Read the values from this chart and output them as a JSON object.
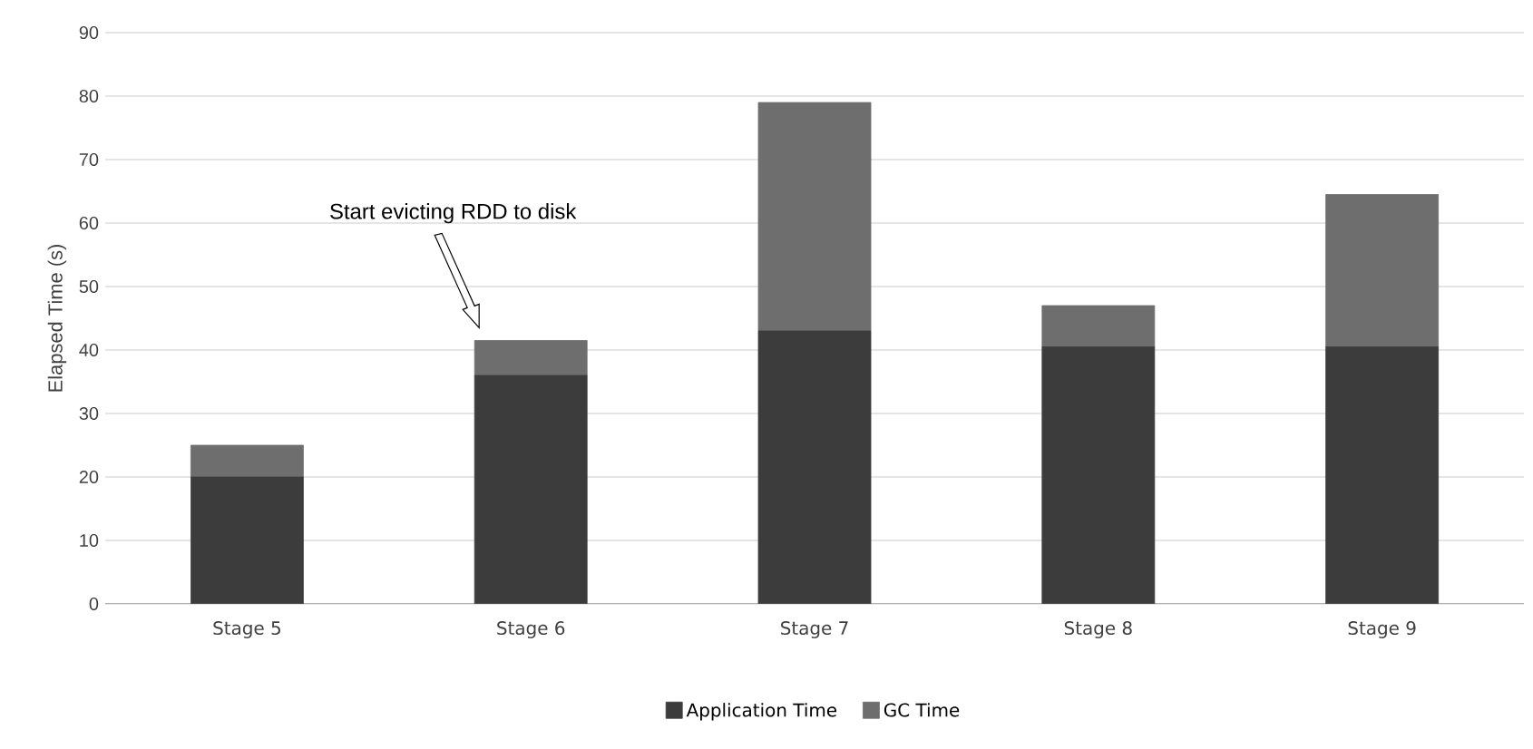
{
  "chart_data": {
    "type": "bar",
    "stacked": true,
    "ylabel": "Elapsed Time (s)",
    "categories": [
      "Stage 5",
      "Stage 6",
      "Stage 7",
      "Stage 8",
      "Stage 9"
    ],
    "series": [
      {
        "name": "Application Time",
        "color": "#3c3c3c",
        "values": [
          20,
          36,
          43,
          40.5,
          40.5
        ]
      },
      {
        "name": "GC Time",
        "color": "#6e6e6e",
        "values": [
          5,
          5.5,
          36,
          6.5,
          24
        ]
      }
    ],
    "ylim": [
      0,
      90
    ],
    "yticks": [
      0,
      10,
      20,
      30,
      40,
      50,
      60,
      70,
      80,
      90
    ],
    "grid": "y",
    "legend": "bottom",
    "annotations": [
      "Start evicting RDD to disk"
    ]
  }
}
